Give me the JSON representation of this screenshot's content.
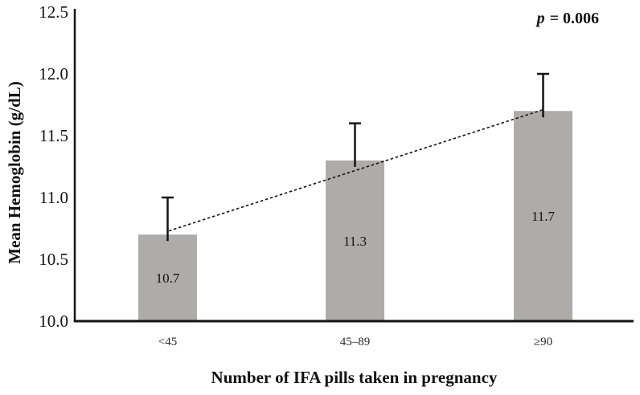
{
  "chart_data": {
    "type": "bar",
    "title": "",
    "xlabel": "Number of IFA pills taken in pregnancy",
    "ylabel": "Mean Hemoglobin (g/dL)",
    "categories": [
      "<45",
      "45–89",
      "≥90"
    ],
    "series": [
      {
        "name": "Mean Hemoglobin",
        "values": [
          10.7,
          11.3,
          11.7
        ],
        "value_labels": [
          "10.7",
          "11.3",
          "11.7"
        ],
        "error_upper": [
          0.3,
          0.3,
          0.3
        ]
      }
    ],
    "annotation": {
      "text": "p = 0.006",
      "symbol": "p",
      "rest": " = 0.006"
    },
    "ylim": [
      10.0,
      12.5
    ],
    "yticks": [
      10.0,
      10.5,
      11.0,
      11.5,
      12.0,
      12.5
    ],
    "ytick_labels": [
      "10.0",
      "10.5",
      "11.0",
      "11.5",
      "12.0",
      "12.5"
    ],
    "trendline": {
      "type": "linear",
      "dashed": true,
      "start_value": 10.73,
      "end_value": 11.71
    },
    "bar_color": "#aeabab",
    "axis_color": "#141414",
    "grid": false,
    "legend": false
  }
}
